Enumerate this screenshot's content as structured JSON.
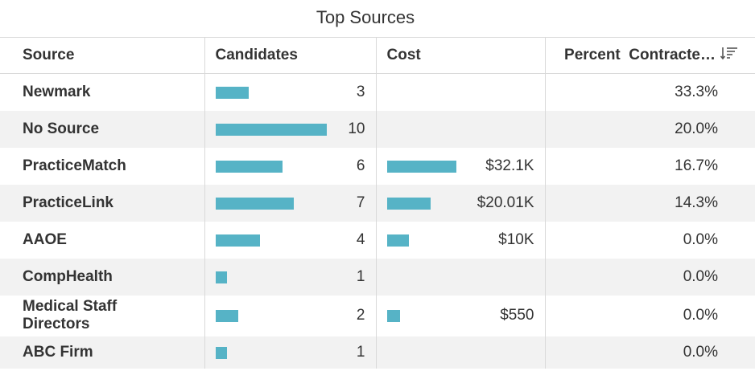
{
  "title": "Top Sources",
  "columns": {
    "source": "Source",
    "candidates": "Candidates",
    "cost": "Cost",
    "percent": "Percent  Contracte…"
  },
  "sort_icon": "sort-descending-icon",
  "colors": {
    "bar": "#56b3c6",
    "stripe": "#f2f2f2"
  },
  "chart_data": {
    "type": "table",
    "title": "Top Sources",
    "columns": [
      "Source",
      "Candidates",
      "Cost",
      "Percent  Contracte…"
    ],
    "rows": [
      {
        "source": "Newmark",
        "candidates": 3,
        "candidates_label": "3",
        "cost": null,
        "cost_label": "",
        "percent": "33.3%"
      },
      {
        "source": "No Source",
        "candidates": 10,
        "candidates_label": "10",
        "cost": null,
        "cost_label": "",
        "percent": "20.0%"
      },
      {
        "source": "PracticeMatch",
        "candidates": 6,
        "candidates_label": "6",
        "cost": 32100,
        "cost_label": "$32.1K",
        "percent": "16.7%"
      },
      {
        "source": "PracticeLink",
        "candidates": 7,
        "candidates_label": "7",
        "cost": 20010,
        "cost_label": "$20.01K",
        "percent": "14.3%"
      },
      {
        "source": "AAOE",
        "candidates": 4,
        "candidates_label": "4",
        "cost": 10000,
        "cost_label": "$10K",
        "percent": "0.0%"
      },
      {
        "source": "CompHealth",
        "candidates": 1,
        "candidates_label": "1",
        "cost": null,
        "cost_label": "",
        "percent": "0.0%"
      },
      {
        "source": "Medical Staff Directors",
        "candidates": 2,
        "candidates_label": "2",
        "cost": 550,
        "cost_label": "$550",
        "percent": "0.0%"
      },
      {
        "source": "ABC Firm",
        "candidates": 1,
        "candidates_label": "1",
        "cost": null,
        "cost_label": "",
        "percent": "0.0%"
      }
    ]
  }
}
